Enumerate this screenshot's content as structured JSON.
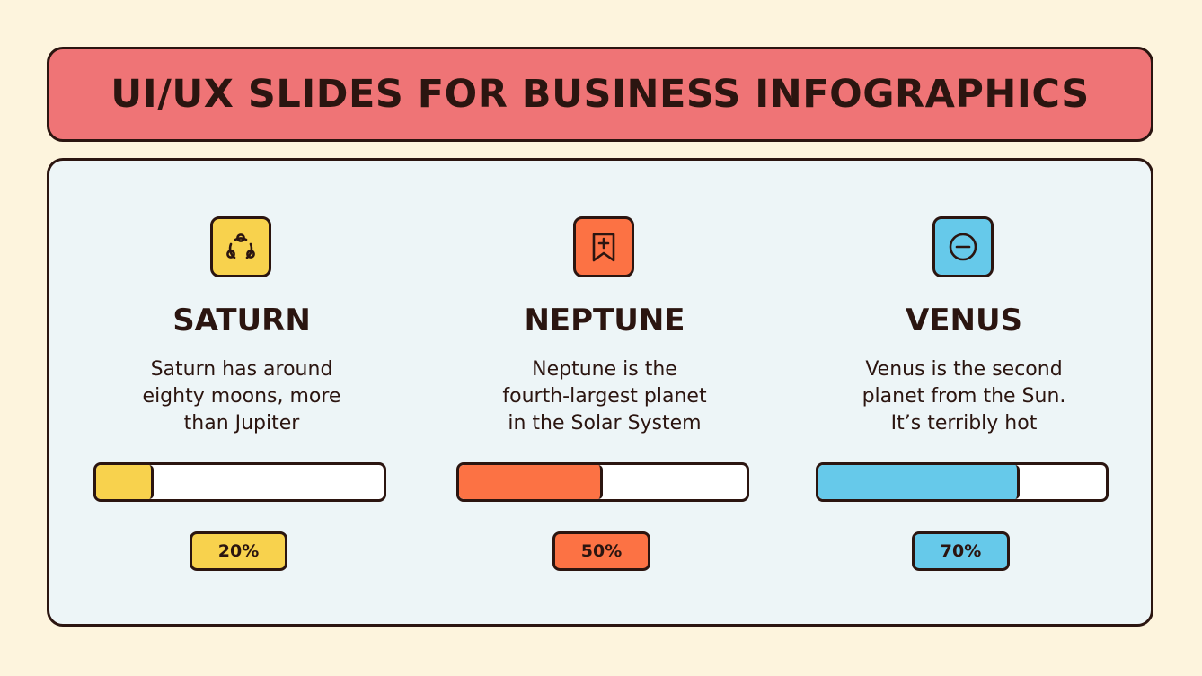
{
  "title": "UI/UX SLIDES FOR BUSINESS INFOGRAPHICS",
  "colors": {
    "background": "#fdf4dd",
    "banner": "#ef7476",
    "panel": "#edf5f7",
    "outline": "#2b1510"
  },
  "items": [
    {
      "title": "SATURN",
      "desc_lines": [
        "Saturn has around",
        "eighty moons, more",
        "than Jupiter"
      ],
      "percent_label": "20%",
      "progress": 0.2,
      "color": "#f8d24d",
      "icon": "connected-circle-icon"
    },
    {
      "title": "NEPTUNE",
      "desc_lines": [
        "Neptune is the",
        "fourth-largest planet",
        "in the Solar System"
      ],
      "percent_label": "50%",
      "progress": 0.5,
      "color": "#fc7244",
      "icon": "bookmark-plus-icon"
    },
    {
      "title": "VENUS",
      "desc_lines": [
        "Venus is the second",
        "planet from the Sun.",
        "It’s terribly hot"
      ],
      "percent_label": "70%",
      "progress": 0.7,
      "color": "#66c9ea",
      "icon": "minus-circle-icon"
    }
  ]
}
